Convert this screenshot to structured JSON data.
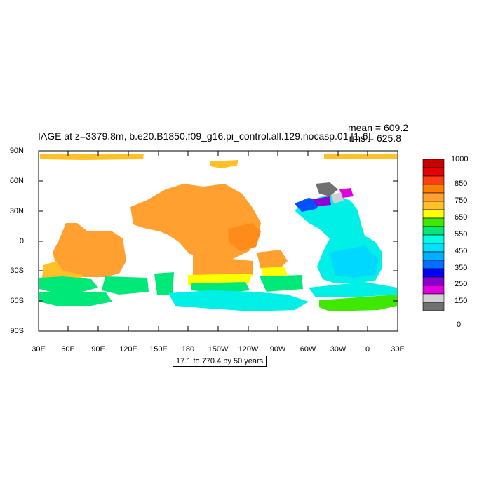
{
  "title": "IAGE at z=3379.8m, b.e20.B1850.f09_g16.pi_control.all.129.nocasp.01 [1-6]",
  "stats": {
    "mean": "mean = 609.2",
    "rms": "rms = 625.8"
  },
  "y_ticks": [
    "90N",
    "60N",
    "30N",
    "0",
    "30S",
    "60S",
    "90S"
  ],
  "x_ticks": [
    "30E",
    "60E",
    "90E",
    "120E",
    "150E",
    "180",
    "150W",
    "120W",
    "90W",
    "60W",
    "30W",
    "0",
    "30E"
  ],
  "caption": "17.1 to 770.4 by 50 years",
  "colorbar": {
    "labels": [
      "1000",
      "850",
      "750",
      "650",
      "550",
      "450",
      "350",
      "250",
      "150",
      "0"
    ],
    "colors": [
      "#c80000",
      "#e60000",
      "#ff3c14",
      "#ff8000",
      "#ffa030",
      "#ffc028",
      "#ffff00",
      "#40e800",
      "#00e878",
      "#00ffe0",
      "#00e0ff",
      "#00b0ff",
      "#0070ff",
      "#0000ff",
      "#8800d0",
      "#e000e0",
      "#d0d0d0",
      "#707070"
    ]
  },
  "map_colors": {
    "orange": "#ffa030",
    "light_orange": "#ffc028",
    "dark_orange": "#ff8c1a",
    "yellow": "#ffff00",
    "green": "#40e800",
    "spring_green": "#00e878",
    "cyan": "#00f0e8",
    "sky": "#00d8ff",
    "blue": "#0050ff",
    "purple": "#9000d0",
    "magenta": "#e000e0",
    "gray": "#707070",
    "light_gray": "#d0d0d0"
  }
}
